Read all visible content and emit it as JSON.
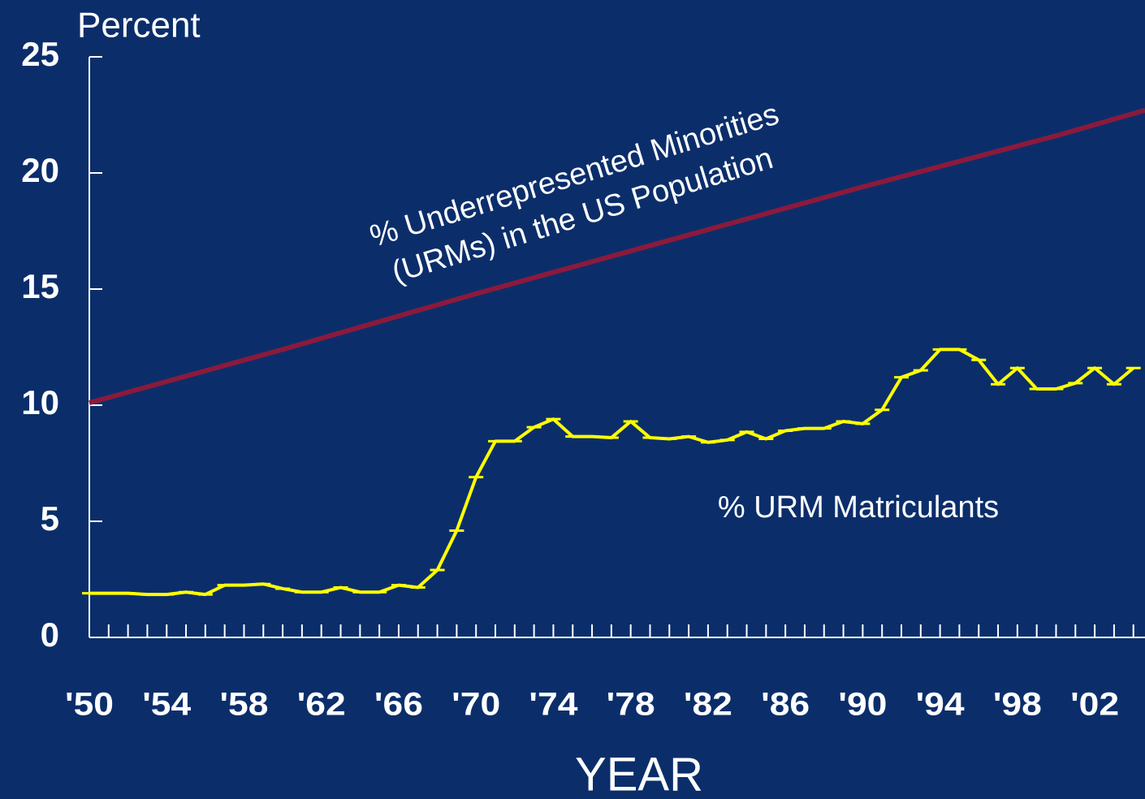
{
  "chart_data": {
    "type": "line",
    "y_axis_label": "Percent",
    "x_axis_label": "YEAR",
    "annotations": [
      "% Underrepresented Minorities",
      "(URMs) in the US Population",
      "% URM Matriculants"
    ],
    "xlim": [
      1950,
      2004.6
    ],
    "ylim": [
      0,
      25
    ],
    "yticks": [
      0,
      5,
      10,
      15,
      20,
      25
    ],
    "xticks": [
      {
        "value": 1950,
        "label": "'50"
      },
      {
        "value": 1954,
        "label": "'54"
      },
      {
        "value": 1958,
        "label": "'58"
      },
      {
        "value": 1962,
        "label": "'62"
      },
      {
        "value": 1966,
        "label": "'66"
      },
      {
        "value": 1970,
        "label": "'70"
      },
      {
        "value": 1974,
        "label": "'74"
      },
      {
        "value": 1978,
        "label": "'78"
      },
      {
        "value": 1982,
        "label": "'82"
      },
      {
        "value": 1986,
        "label": "'86"
      },
      {
        "value": 1990,
        "label": "'90"
      },
      {
        "value": 1994,
        "label": "'94"
      },
      {
        "value": 1998,
        "label": "'98"
      },
      {
        "value": 2002,
        "label": "'02"
      }
    ],
    "xminorticks": [
      1951,
      1952,
      1953,
      1955,
      1956,
      1957,
      1959,
      1960,
      1961,
      1963,
      1964,
      1965,
      1967,
      1968,
      1969,
      1971,
      1972,
      1973,
      1975,
      1976,
      1977,
      1979,
      1980,
      1981,
      1983,
      1984,
      1985,
      1987,
      1988,
      1989,
      1991,
      1992,
      1993,
      1995,
      1996,
      1997,
      1999,
      2000,
      2001,
      2003,
      2004
    ],
    "series": [
      {
        "name": "% URMs in the US Population",
        "color": "#8b1a3c",
        "x": [
          1950,
          1960,
          1970,
          1980,
          1990,
          2000,
          2004.6
        ],
        "values": [
          10.1,
          12.4,
          14.8,
          17.1,
          19.4,
          21.6,
          22.7
        ]
      },
      {
        "name": "% URM Matriculants",
        "color": "#ffff00",
        "x": [
          1950,
          1951,
          1952,
          1953,
          1954,
          1955,
          1956,
          1957,
          1958,
          1959,
          1960,
          1961,
          1962,
          1963,
          1964,
          1965,
          1966,
          1967,
          1968,
          1969,
          1970,
          1971,
          1972,
          1973,
          1974,
          1975,
          1976,
          1977,
          1978,
          1979,
          1980,
          1981,
          1982,
          1983,
          1984,
          1985,
          1986,
          1987,
          1988,
          1989,
          1990,
          1991,
          1992,
          1993,
          1994,
          1995,
          1996,
          1997,
          1998,
          1999,
          2000,
          2001,
          2002,
          2003,
          2004
        ],
        "values": [
          1.9,
          1.9,
          1.9,
          1.85,
          1.85,
          1.95,
          1.85,
          2.25,
          2.25,
          2.3,
          2.1,
          1.95,
          1.95,
          2.15,
          1.95,
          1.95,
          2.25,
          2.15,
          2.9,
          4.6,
          6.9,
          8.45,
          8.45,
          9.05,
          9.4,
          8.65,
          8.65,
          8.6,
          9.3,
          8.6,
          8.55,
          8.65,
          8.4,
          8.5,
          8.85,
          8.55,
          8.9,
          9.0,
          9.0,
          9.3,
          9.2,
          9.8,
          11.2,
          11.5,
          12.4,
          12.4,
          11.95,
          10.9,
          11.6,
          10.7,
          10.7,
          10.95,
          11.6,
          10.9,
          11.6
        ]
      }
    ]
  }
}
